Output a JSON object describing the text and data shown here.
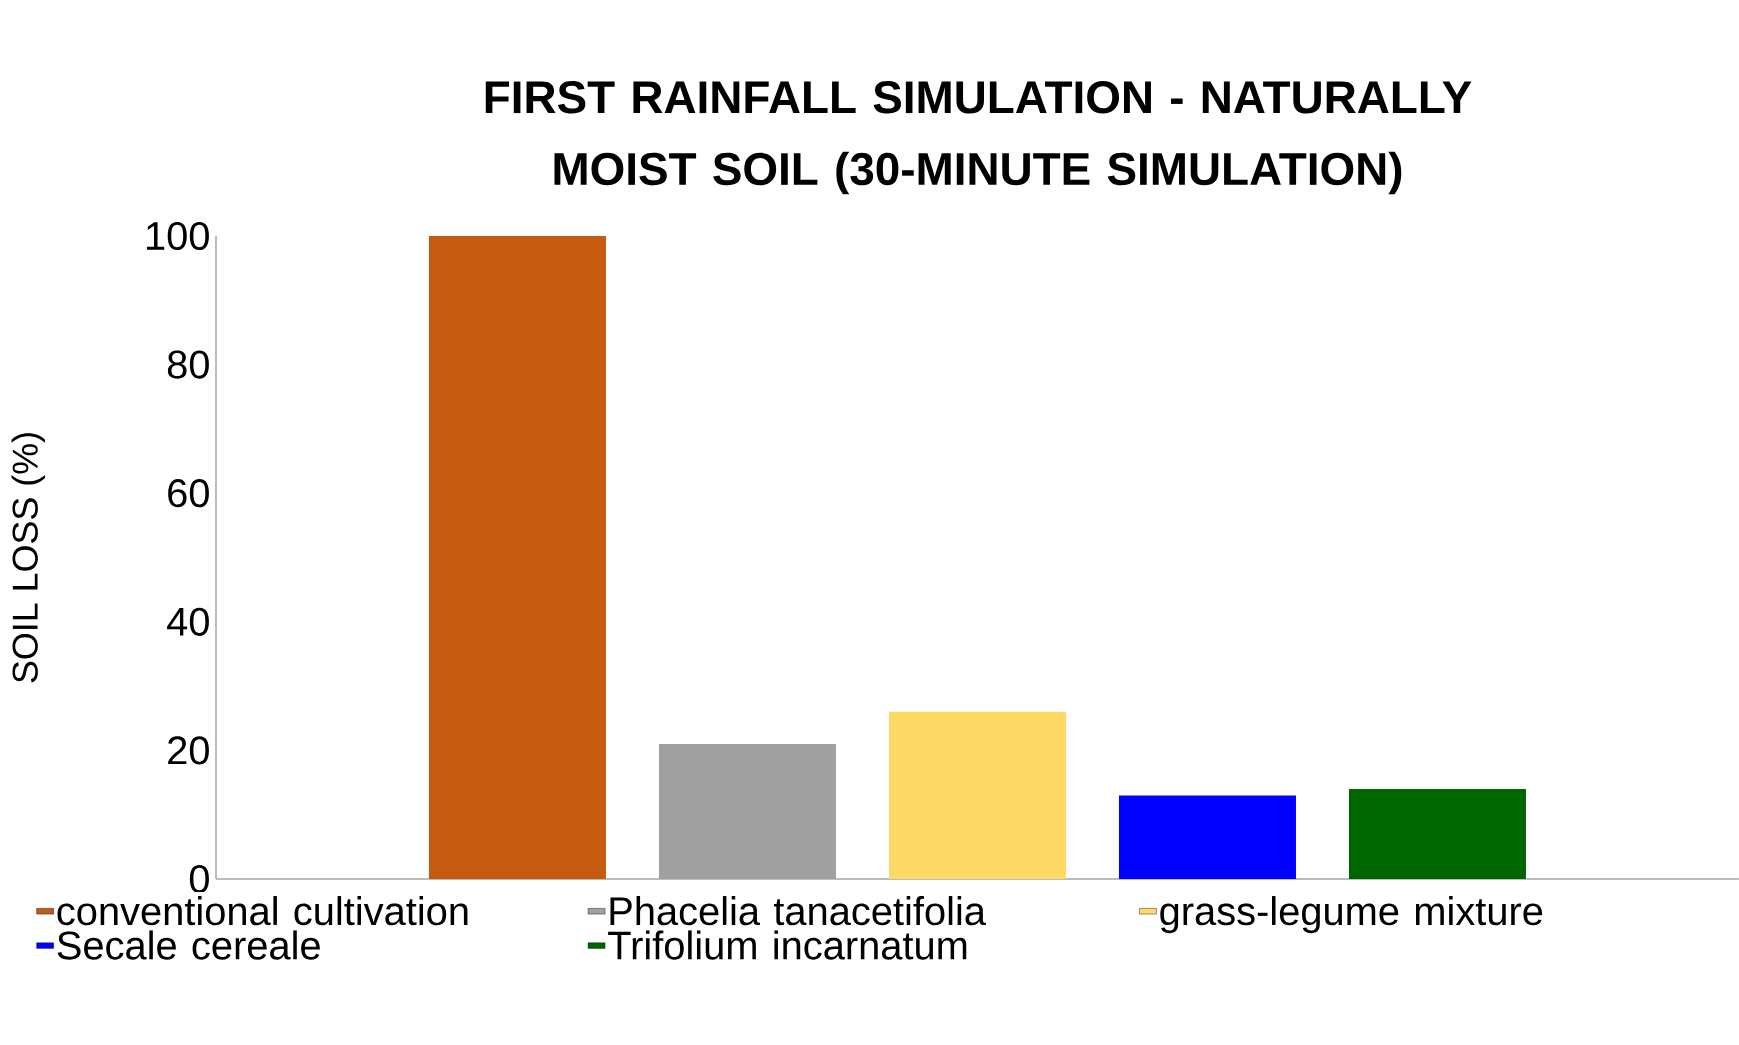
{
  "chart_data": {
    "type": "bar",
    "title": "FIRST RAINFALL SIMULATION - NATURALLY MOIST SOIL (30-MINUTE SIMULATION)",
    "ylabel": "SOIL LOSS (%)",
    "categories": [
      null
    ],
    "series": [
      {
        "name": "conventional cultivation",
        "color": "#c55a11",
        "values": [
          100
        ]
      },
      {
        "name": "Phacelia tanacetifolia",
        "color": "#a0a0a0",
        "values": [
          21
        ]
      },
      {
        "name": "grass-legume mixture",
        "color": "#ffd966",
        "values": [
          26
        ]
      },
      {
        "name": "Secale cereale",
        "color": "#0000ff",
        "values": [
          13
        ]
      },
      {
        "name": "Trifolium incarnatum",
        "color": "#006600",
        "values": [
          14
        ]
      }
    ],
    "ylim": [
      0,
      100
    ],
    "yticks": [
      0,
      20,
      40,
      60,
      80,
      100
    ],
    "legend": "bottom"
  }
}
